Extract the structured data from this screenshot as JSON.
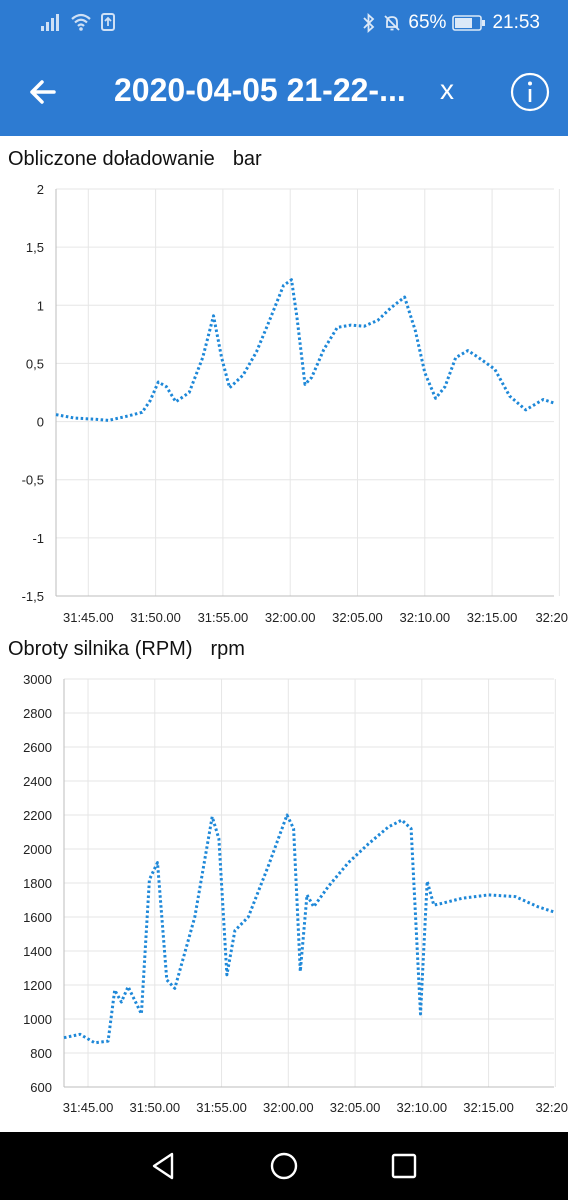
{
  "status": {
    "battery": "65%",
    "time": "21:53"
  },
  "appbar": {
    "title": "2020-04-05 21-22-...",
    "close_label": "x"
  },
  "charts": [
    {
      "title": "Obliczone doładowanie",
      "unit": "bar"
    },
    {
      "title": "Obroty silnika (RPM)",
      "unit": "rpm"
    }
  ],
  "chart_data": [
    {
      "type": "line",
      "title": "Obliczone doładowanie",
      "ylabel": "bar",
      "ylim": [
        -1.5,
        2
      ],
      "yticks": [
        "2",
        "1,5",
        "1",
        "0,5",
        "0",
        "-0,5",
        "-1",
        "-1,5"
      ],
      "ytick_values": [
        2,
        1.5,
        1,
        0.5,
        0,
        -0.5,
        -1,
        -1.5
      ],
      "xticks": [
        "31:45.00",
        "31:50.00",
        "31:55.00",
        "32:00.00",
        "32:05.00",
        "32:10.00",
        "32:15.00",
        "32:20"
      ],
      "xtick_seconds": [
        1905,
        1910,
        1915,
        1920,
        1925,
        1930,
        1935,
        1940
      ],
      "xlim_seconds": [
        1902.6,
        1939.6
      ],
      "grid": true,
      "color": "#1e88d8",
      "series": [
        {
          "x": [
            1902.6,
            1904,
            1905.5,
            1906.5,
            1908,
            1909,
            1909.6,
            1910.2,
            1910.8,
            1911.5,
            1912.5,
            1913.5,
            1914.3,
            1914.9,
            1915.5,
            1916.5,
            1917.5,
            1918.5,
            1919.5,
            1920.1,
            1920.5,
            1921.1,
            1921.6,
            1922.5,
            1923.5,
            1924.5,
            1925.5,
            1926.5,
            1927.5,
            1928.5,
            1929.3,
            1930,
            1930.8,
            1931.5,
            1932.3,
            1933.2,
            1934,
            1935.2,
            1936.3,
            1937.5,
            1938.8,
            1939.6
          ],
          "y": [
            0.06,
            0.03,
            0.02,
            0.01,
            0.05,
            0.08,
            0.18,
            0.34,
            0.3,
            0.17,
            0.25,
            0.55,
            0.91,
            0.55,
            0.29,
            0.4,
            0.6,
            0.88,
            1.17,
            1.22,
            0.9,
            0.32,
            0.38,
            0.62,
            0.81,
            0.83,
            0.82,
            0.87,
            0.98,
            1.07,
            0.78,
            0.42,
            0.2,
            0.3,
            0.55,
            0.61,
            0.55,
            0.45,
            0.22,
            0.1,
            0.19,
            0.16
          ]
        }
      ]
    },
    {
      "type": "line",
      "title": "Obroty silnika (RPM)",
      "ylabel": "rpm",
      "ylim": [
        600,
        3000
      ],
      "yticks": [
        "3000",
        "2800",
        "2600",
        "2400",
        "2200",
        "2000",
        "1800",
        "1600",
        "1400",
        "1200",
        "1000",
        "800",
        "600"
      ],
      "ytick_values": [
        3000,
        2800,
        2600,
        2400,
        2200,
        2000,
        1800,
        1600,
        1400,
        1200,
        1000,
        800,
        600
      ],
      "xticks": [
        "31:45.00",
        "31:50.00",
        "31:55.00",
        "32:00.00",
        "32:05.00",
        "32:10.00",
        "32:15.00",
        "32:20"
      ],
      "xtick_seconds": [
        1905,
        1910,
        1915,
        1920,
        1925,
        1930,
        1935,
        1940
      ],
      "xlim_seconds": [
        1903.2,
        1939.9
      ],
      "grid": true,
      "color": "#1e88d8",
      "series": [
        {
          "x": [
            1903.2,
            1904.4,
            1905.5,
            1906.5,
            1907,
            1907.5,
            1908,
            1909,
            1909.6,
            1910.2,
            1910.9,
            1911.5,
            1913,
            1914.3,
            1914.8,
            1915.4,
            1916,
            1917,
            1918.5,
            1919.9,
            1920.4,
            1920.9,
            1921.4,
            1921.9,
            1923,
            1924.5,
            1926,
            1927.5,
            1928.5,
            1929.2,
            1929.9,
            1930.4,
            1930.9,
            1931.5,
            1933,
            1935,
            1937,
            1938.7,
            1939.9
          ],
          "y": [
            890,
            910,
            860,
            870,
            1170,
            1100,
            1190,
            1030,
            1820,
            1920,
            1230,
            1180,
            1600,
            2190,
            2060,
            1260,
            1520,
            1600,
            1900,
            2200,
            2120,
            1280,
            1730,
            1660,
            1780,
            1920,
            2030,
            2130,
            2170,
            2120,
            1030,
            1810,
            1670,
            1680,
            1710,
            1730,
            1720,
            1660,
            1630
          ]
        }
      ]
    }
  ]
}
